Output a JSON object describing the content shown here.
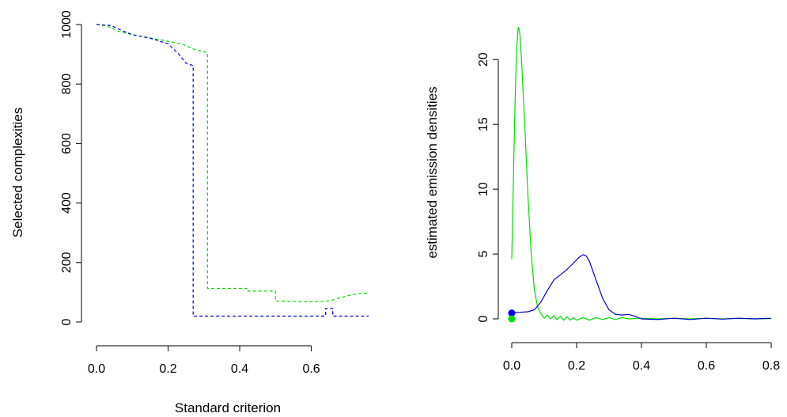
{
  "chart_data": [
    {
      "type": "line",
      "title": "",
      "xlabel": "Standard criterion",
      "ylabel": "Selected complexities",
      "xlim": [
        0,
        0.76
      ],
      "ylim": [
        0,
        1000
      ],
      "xticks": [
        0.0,
        0.2,
        0.4,
        0.6
      ],
      "xtick_labels": [
        "0.0",
        "0.2",
        "0.4",
        "0.6"
      ],
      "yticks": [
        0,
        200,
        400,
        600,
        800,
        1000
      ],
      "ytick_labels": [
        "0",
        "200",
        "400",
        "600",
        "800",
        "1000"
      ],
      "grid": false,
      "series": [
        {
          "color": "#00dd00",
          "dash": "dashed",
          "step": true,
          "points": [
            [
              0.0,
              1000
            ],
            [
              0.03,
              995
            ],
            [
              0.06,
              978
            ],
            [
              0.1,
              966
            ],
            [
              0.15,
              955
            ],
            [
              0.2,
              944
            ],
            [
              0.24,
              934
            ],
            [
              0.27,
              918
            ],
            [
              0.31,
              905
            ],
            [
              0.31,
              113
            ],
            [
              0.42,
              113
            ],
            [
              0.42,
              104
            ],
            [
              0.5,
              104
            ],
            [
              0.5,
              71
            ],
            [
              0.6,
              68
            ],
            [
              0.65,
              71
            ],
            [
              0.7,
              88
            ],
            [
              0.74,
              97
            ],
            [
              0.76,
              97
            ]
          ]
        },
        {
          "color": "#0000cc",
          "dash": "dashed",
          "step": true,
          "points": [
            [
              0.0,
              1000
            ],
            [
              0.04,
              997
            ],
            [
              0.07,
              980
            ],
            [
              0.1,
              966
            ],
            [
              0.15,
              954
            ],
            [
              0.2,
              935
            ],
            [
              0.23,
              900
            ],
            [
              0.25,
              870
            ],
            [
              0.27,
              862
            ],
            [
              0.27,
              20
            ],
            [
              0.64,
              20
            ],
            [
              0.64,
              46
            ],
            [
              0.66,
              46
            ],
            [
              0.66,
              20
            ],
            [
              0.76,
              20
            ]
          ]
        }
      ]
    },
    {
      "type": "line",
      "title": "",
      "xlabel": "",
      "ylabel": "estimated emission densities",
      "xlim": [
        -0.02,
        0.8
      ],
      "ylim": [
        0,
        23
      ],
      "xticks": [
        0.0,
        0.2,
        0.4,
        0.6,
        0.8
      ],
      "xtick_labels": [
        "0.0",
        "0.2",
        "0.4",
        "0.6",
        "0.8"
      ],
      "yticks": [
        0,
        5,
        10,
        15,
        20
      ],
      "ytick_labels": [
        "0",
        "5",
        "10",
        "15",
        "20"
      ],
      "grid": false,
      "series": [
        {
          "color": "#00dd00",
          "dash": "solid",
          "points": [
            [
              0.0,
              4.6
            ],
            [
              0.005,
              10.5
            ],
            [
              0.01,
              16.5
            ],
            [
              0.015,
              20.8
            ],
            [
              0.02,
              22.5
            ],
            [
              0.025,
              22.0
            ],
            [
              0.03,
              20.0
            ],
            [
              0.04,
              15.0
            ],
            [
              0.05,
              9.5
            ],
            [
              0.06,
              5.0
            ],
            [
              0.07,
              2.2
            ],
            [
              0.08,
              0.9
            ],
            [
              0.09,
              0.4
            ],
            [
              0.1,
              0.05
            ],
            [
              0.11,
              0.3
            ],
            [
              0.12,
              0.0
            ],
            [
              0.13,
              0.25
            ],
            [
              0.14,
              -0.05
            ],
            [
              0.15,
              0.2
            ],
            [
              0.16,
              -0.1
            ],
            [
              0.17,
              0.15
            ],
            [
              0.18,
              -0.1
            ],
            [
              0.19,
              0.1
            ],
            [
              0.2,
              -0.1
            ],
            [
              0.22,
              0.1
            ],
            [
              0.24,
              -0.1
            ],
            [
              0.26,
              0.1
            ],
            [
              0.28,
              -0.05
            ],
            [
              0.3,
              0.1
            ],
            [
              0.32,
              -0.05
            ],
            [
              0.34,
              0.1
            ],
            [
              0.36,
              0.0
            ],
            [
              0.4,
              0.05
            ],
            [
              0.45,
              0.0
            ],
            [
              0.5,
              0.05
            ],
            [
              0.55,
              0.0
            ],
            [
              0.6,
              0.05
            ],
            [
              0.65,
              0.0
            ],
            [
              0.7,
              0.05
            ],
            [
              0.75,
              0.0
            ],
            [
              0.8,
              0.02
            ]
          ]
        },
        {
          "color": "#0000cc",
          "dash": "solid",
          "points": [
            [
              0.0,
              0.45
            ],
            [
              0.02,
              0.5
            ],
            [
              0.05,
              0.55
            ],
            [
              0.07,
              0.7
            ],
            [
              0.09,
              1.3
            ],
            [
              0.11,
              2.2
            ],
            [
              0.13,
              3.0
            ],
            [
              0.15,
              3.4
            ],
            [
              0.17,
              3.8
            ],
            [
              0.19,
              4.3
            ],
            [
              0.21,
              4.8
            ],
            [
              0.22,
              4.95
            ],
            [
              0.23,
              4.85
            ],
            [
              0.24,
              4.4
            ],
            [
              0.26,
              3.0
            ],
            [
              0.28,
              1.6
            ],
            [
              0.3,
              0.7
            ],
            [
              0.32,
              0.35
            ],
            [
              0.34,
              0.3
            ],
            [
              0.36,
              0.35
            ],
            [
              0.38,
              0.2
            ],
            [
              0.4,
              0.0
            ],
            [
              0.45,
              -0.05
            ],
            [
              0.5,
              0.05
            ],
            [
              0.55,
              -0.05
            ],
            [
              0.6,
              0.05
            ],
            [
              0.65,
              -0.02
            ],
            [
              0.7,
              0.05
            ],
            [
              0.75,
              0.0
            ],
            [
              0.8,
              0.05
            ]
          ]
        }
      ],
      "markers": [
        {
          "x": 0.0,
          "y": 0.45,
          "color": "#0000ff"
        },
        {
          "x": 0.0,
          "y": 0.0,
          "color": "#00dd00"
        }
      ]
    }
  ]
}
